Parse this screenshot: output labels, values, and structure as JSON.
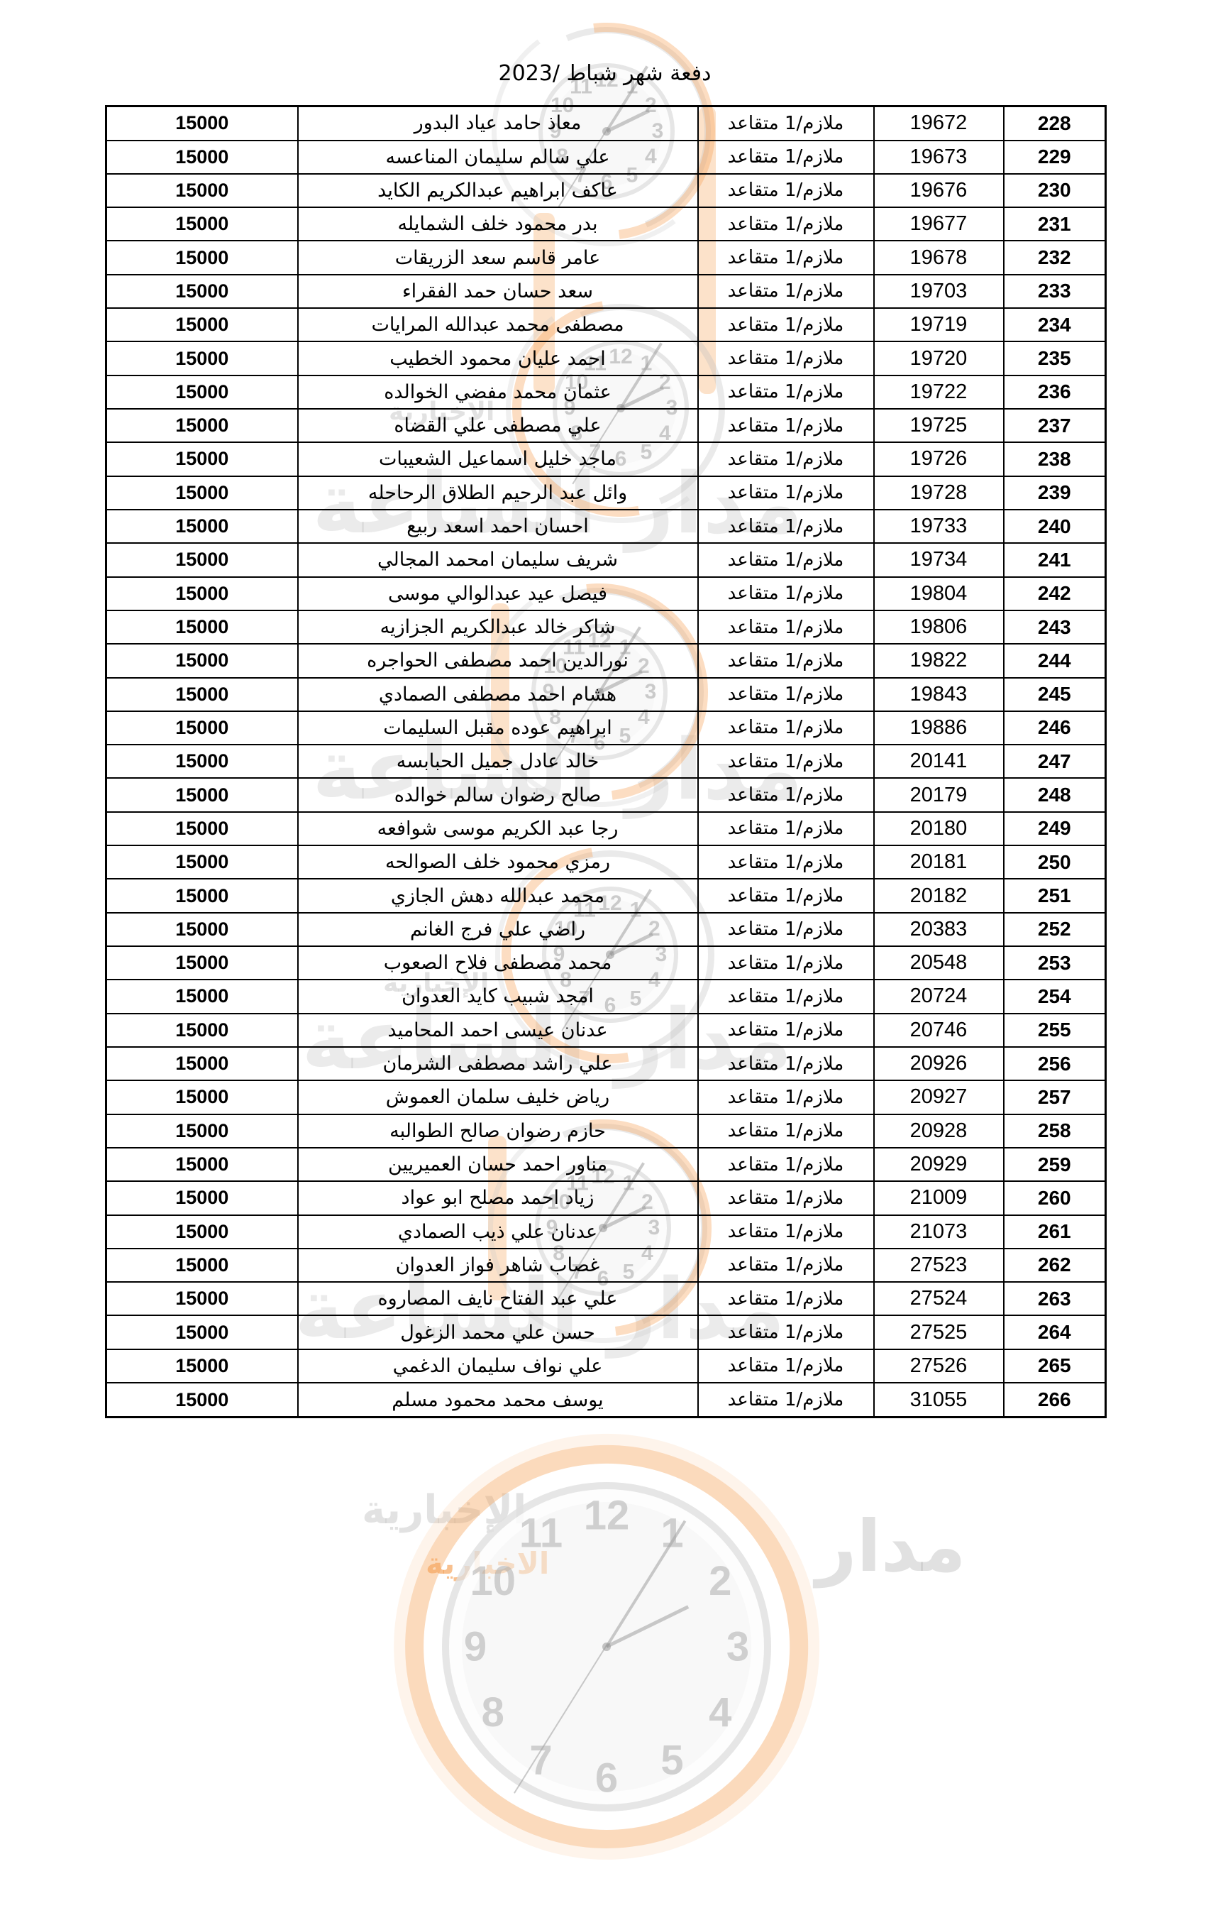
{
  "page": {
    "title": "دفعة شهر شباط /2023"
  },
  "table": {
    "rank_value": "ملازم/1 متقاعد",
    "amount_value": "15000",
    "rows": [
      {
        "num": "228",
        "id": "19672",
        "rank": "ملازم/1 متقاعد",
        "name": "معاذ حامد عياد البدور",
        "amount": "15000"
      },
      {
        "num": "229",
        "id": "19673",
        "rank": "ملازم/1 متقاعد",
        "name": "علي سالم سليمان المناعسه",
        "amount": "15000"
      },
      {
        "num": "230",
        "id": "19676",
        "rank": "ملازم/1 متقاعد",
        "name": "عاكف ابراهيم عبدالكريم الكايد",
        "amount": "15000"
      },
      {
        "num": "231",
        "id": "19677",
        "rank": "ملازم/1 متقاعد",
        "name": "بدر محمود خلف الشمايله",
        "amount": "15000"
      },
      {
        "num": "232",
        "id": "19678",
        "rank": "ملازم/1 متقاعد",
        "name": "عامر قاسم سعد الزريقات",
        "amount": "15000"
      },
      {
        "num": "233",
        "id": "19703",
        "rank": "ملازم/1 متقاعد",
        "name": "سعد حسان حمد الفقراء",
        "amount": "15000"
      },
      {
        "num": "234",
        "id": "19719",
        "rank": "ملازم/1 متقاعد",
        "name": "مصطفى محمد عبدالله المرايات",
        "amount": "15000"
      },
      {
        "num": "235",
        "id": "19720",
        "rank": "ملازم/1 متقاعد",
        "name": "احمد عليان محمود الخطيب",
        "amount": "15000"
      },
      {
        "num": "236",
        "id": "19722",
        "rank": "ملازم/1 متقاعد",
        "name": "عثمان محمد مفضي الخوالده",
        "amount": "15000"
      },
      {
        "num": "237",
        "id": "19725",
        "rank": "ملازم/1 متقاعد",
        "name": "علي مصطفى علي القضاه",
        "amount": "15000"
      },
      {
        "num": "238",
        "id": "19726",
        "rank": "ملازم/1 متقاعد",
        "name": "ماجد خليل اسماعيل الشعيبات",
        "amount": "15000"
      },
      {
        "num": "239",
        "id": "19728",
        "rank": "ملازم/1 متقاعد",
        "name": "وائل عبد الرحيم الطلاق الرحاحله",
        "amount": "15000"
      },
      {
        "num": "240",
        "id": "19733",
        "rank": "ملازم/1 متقاعد",
        "name": "احسان احمد اسعد ربيع",
        "amount": "15000"
      },
      {
        "num": "241",
        "id": "19734",
        "rank": "ملازم/1 متقاعد",
        "name": "شريف سليمان امحمد المجالي",
        "amount": "15000"
      },
      {
        "num": "242",
        "id": "19804",
        "rank": "ملازم/1 متقاعد",
        "name": "فيصل عيد عبدالوالي موسى",
        "amount": "15000"
      },
      {
        "num": "243",
        "id": "19806",
        "rank": "ملازم/1 متقاعد",
        "name": "شاكر خالد عبدالكريم الجزازيه",
        "amount": "15000"
      },
      {
        "num": "244",
        "id": "19822",
        "rank": "ملازم/1 متقاعد",
        "name": "نورالدين احمد مصطفى الحواجره",
        "amount": "15000"
      },
      {
        "num": "245",
        "id": "19843",
        "rank": "ملازم/1 متقاعد",
        "name": "هشام احمد مصطفى الصمادي",
        "amount": "15000"
      },
      {
        "num": "246",
        "id": "19886",
        "rank": "ملازم/1 متقاعد",
        "name": "ابراهيم عوده مقبل السليمات",
        "amount": "15000"
      },
      {
        "num": "247",
        "id": "20141",
        "rank": "ملازم/1 متقاعد",
        "name": "خالد عادل جميل الحبابسه",
        "amount": "15000"
      },
      {
        "num": "248",
        "id": "20179",
        "rank": "ملازم/1 متقاعد",
        "name": "صالح رضوان سالم خوالده",
        "amount": "15000"
      },
      {
        "num": "249",
        "id": "20180",
        "rank": "ملازم/1 متقاعد",
        "name": "رجا عبد الكريم موسى شوافعه",
        "amount": "15000"
      },
      {
        "num": "250",
        "id": "20181",
        "rank": "ملازم/1 متقاعد",
        "name": "رمزي محمود خلف الصوالحه",
        "amount": "15000"
      },
      {
        "num": "251",
        "id": "20182",
        "rank": "ملازم/1 متقاعد",
        "name": "محمد عبدالله دهش الجازي",
        "amount": "15000"
      },
      {
        "num": "252",
        "id": "20383",
        "rank": "ملازم/1 متقاعد",
        "name": "راضي علي فرج الغانم",
        "amount": "15000"
      },
      {
        "num": "253",
        "id": "20548",
        "rank": "ملازم/1 متقاعد",
        "name": "محمد مصطفى فلاح الصعوب",
        "amount": "15000"
      },
      {
        "num": "254",
        "id": "20724",
        "rank": "ملازم/1 متقاعد",
        "name": "امجد شبيب كايد العدوان",
        "amount": "15000"
      },
      {
        "num": "255",
        "id": "20746",
        "rank": "ملازم/1 متقاعد",
        "name": "عدنان عيسى احمد المحاميد",
        "amount": "15000"
      },
      {
        "num": "256",
        "id": "20926",
        "rank": "ملازم/1 متقاعد",
        "name": "علي راشد مصطفى الشرمان",
        "amount": "15000"
      },
      {
        "num": "257",
        "id": "20927",
        "rank": "ملازم/1 متقاعد",
        "name": "رياض خليف سلمان العموش",
        "amount": "15000"
      },
      {
        "num": "258",
        "id": "20928",
        "rank": "ملازم/1 متقاعد",
        "name": "حازم رضوان صالح الطوالبه",
        "amount": "15000"
      },
      {
        "num": "259",
        "id": "20929",
        "rank": "ملازم/1 متقاعد",
        "name": "مناور احمد حسان العميريين",
        "amount": "15000"
      },
      {
        "num": "260",
        "id": "21009",
        "rank": "ملازم/1 متقاعد",
        "name": "زياد احمد مصلح ابو عواد",
        "amount": "15000"
      },
      {
        "num": "261",
        "id": "21073",
        "rank": "ملازم/1 متقاعد",
        "name": "عدنان علي ذيب الصمادي",
        "amount": "15000"
      },
      {
        "num": "262",
        "id": "27523",
        "rank": "ملازم/1 متقاعد",
        "name": "غصاب شاهر فواز العدوان",
        "amount": "15000"
      },
      {
        "num": "263",
        "id": "27524",
        "rank": "ملازم/1 متقاعد",
        "name": "علي عبد الفتاح  نايف المصاروه",
        "amount": "15000"
      },
      {
        "num": "264",
        "id": "27525",
        "rank": "ملازم/1 متقاعد",
        "name": "حسن علي محمد الزغول",
        "amount": "15000"
      },
      {
        "num": "265",
        "id": "27526",
        "rank": "ملازم/1 متقاعد",
        "name": "علي نواف سليمان الدغمي",
        "amount": "15000"
      },
      {
        "num": "266",
        "id": "31055",
        "rank": "ملازم/1 متقاعد",
        "name": "يوسف محمد محمود مسلم",
        "amount": "15000"
      }
    ]
  },
  "watermark": {
    "brand_main": "مدار الساعة",
    "brand_sub": "الإخبارية",
    "brand_sub_alt": "الاخبارية",
    "brand_right_fragment": "مدار",
    "clock_numbers": [
      "12",
      "1",
      "2",
      "3",
      "4",
      "5",
      "6",
      "7",
      "8",
      "9",
      "10",
      "11"
    ],
    "colors": {
      "orange": "#F6A65F",
      "gray": "#9B9B9B"
    }
  }
}
